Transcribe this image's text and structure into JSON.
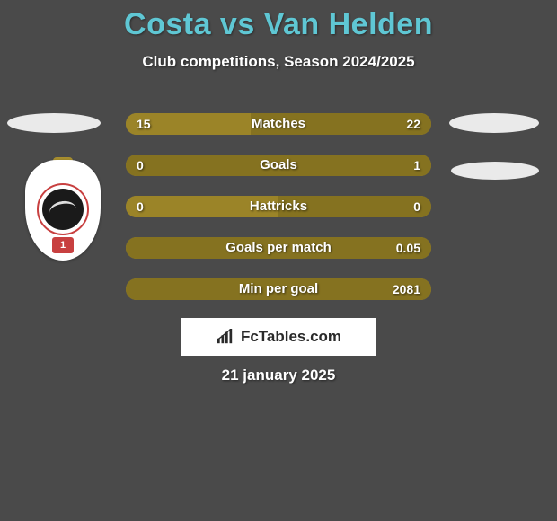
{
  "header": {
    "title": "Costa vs Van Helden",
    "subtitle": "Club competitions, Season 2024/2025",
    "title_color": "#5fc7d4"
  },
  "crest": {
    "badge_number": "1"
  },
  "stats": {
    "rows": [
      {
        "label": "Matches",
        "left": "15",
        "right": "22",
        "left_pct": 41,
        "right_pct": 59
      },
      {
        "label": "Goals",
        "left": "0",
        "right": "1",
        "left_pct": 0,
        "right_pct": 100
      },
      {
        "label": "Hattricks",
        "left": "0",
        "right": "0",
        "left_pct": 50,
        "right_pct": 50
      },
      {
        "label": "Goals per match",
        "left": "",
        "right": "0.05",
        "left_pct": 0,
        "right_pct": 100
      },
      {
        "label": "Min per goal",
        "left": "",
        "right": "2081",
        "left_pct": 0,
        "right_pct": 100
      }
    ],
    "bar_bg": "#a88f2f",
    "bar_left_fill": "#9b8428",
    "bar_right_fill": "#857220"
  },
  "brand": {
    "text": "FcTables.com"
  },
  "footer": {
    "date": "21 january 2025"
  }
}
